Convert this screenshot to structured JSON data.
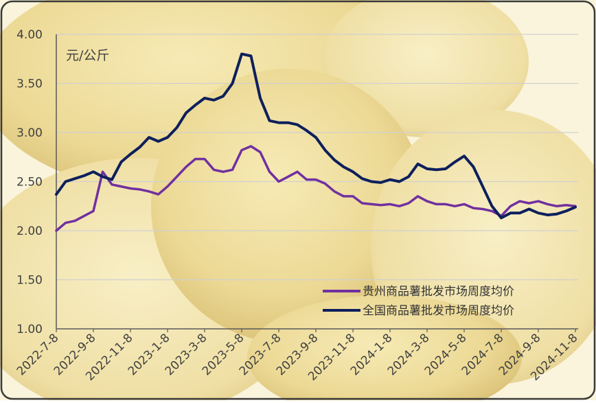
{
  "chart_data": {
    "type": "line",
    "y_axis_label": "元/公斤",
    "categories": [
      "2022-7-8",
      null,
      null,
      null,
      "2022-9-8",
      null,
      null,
      null,
      "2022-11-8",
      null,
      null,
      null,
      "2023-1-8",
      null,
      null,
      null,
      "2023-3-8",
      null,
      null,
      null,
      "2023-5-8",
      null,
      null,
      null,
      "2023-7-8",
      null,
      null,
      null,
      "2023-9-8",
      null,
      null,
      null,
      "2023-11-8",
      null,
      null,
      null,
      "2024-1-8",
      null,
      null,
      null,
      "2024-3-8",
      null,
      null,
      null,
      "2024-5-8",
      null,
      null,
      null,
      "2024-7-8",
      null,
      null,
      null,
      "2024-9-8",
      null,
      null,
      null,
      "2024-11-8"
    ],
    "series": [
      {
        "name": "贵州商品薯批发市场周度均价",
        "color": "#7030a0",
        "values": [
          2.0,
          2.08,
          2.1,
          2.15,
          2.2,
          2.6,
          2.47,
          2.45,
          2.43,
          2.42,
          2.4,
          2.37,
          2.45,
          2.55,
          2.65,
          2.73,
          2.73,
          2.62,
          2.6,
          2.62,
          2.82,
          2.86,
          2.8,
          2.6,
          2.5,
          2.55,
          2.6,
          2.52,
          2.52,
          2.48,
          2.4,
          2.35,
          2.35,
          2.28,
          2.27,
          2.26,
          2.27,
          2.25,
          2.28,
          2.35,
          2.3,
          2.27,
          2.27,
          2.25,
          2.27,
          2.23,
          2.22,
          2.2,
          2.15,
          2.25,
          2.3,
          2.28,
          2.3,
          2.27,
          2.25,
          2.26,
          2.25
        ]
      },
      {
        "name": "全国商品薯批发市场周度均价",
        "color": "#0d1f5c",
        "values": [
          2.37,
          2.5,
          2.53,
          2.56,
          2.6,
          2.55,
          2.52,
          2.7,
          2.78,
          2.85,
          2.95,
          2.91,
          2.95,
          3.05,
          3.2,
          3.28,
          3.35,
          3.33,
          3.37,
          3.5,
          3.8,
          3.78,
          3.35,
          3.12,
          3.1,
          3.1,
          3.08,
          3.02,
          2.95,
          2.82,
          2.72,
          2.65,
          2.6,
          2.53,
          2.5,
          2.49,
          2.52,
          2.5,
          2.55,
          2.68,
          2.63,
          2.62,
          2.63,
          2.7,
          2.76,
          2.65,
          2.45,
          2.25,
          2.13,
          2.18,
          2.18,
          2.22,
          2.18,
          2.16,
          2.17,
          2.2,
          2.24
        ]
      }
    ],
    "ylim": [
      1,
      4
    ],
    "yticks": [
      {
        "value": 1,
        "label": "1.00"
      },
      {
        "value": 1.5,
        "label": "1.50"
      },
      {
        "value": 2,
        "label": "2.00"
      },
      {
        "value": 2.5,
        "label": "2.50"
      },
      {
        "value": 3,
        "label": "3.00"
      },
      {
        "value": 3.5,
        "label": "3.50"
      },
      {
        "value": 4,
        "label": "4.00"
      }
    ],
    "grid": true,
    "legend_position": "lower-right"
  }
}
